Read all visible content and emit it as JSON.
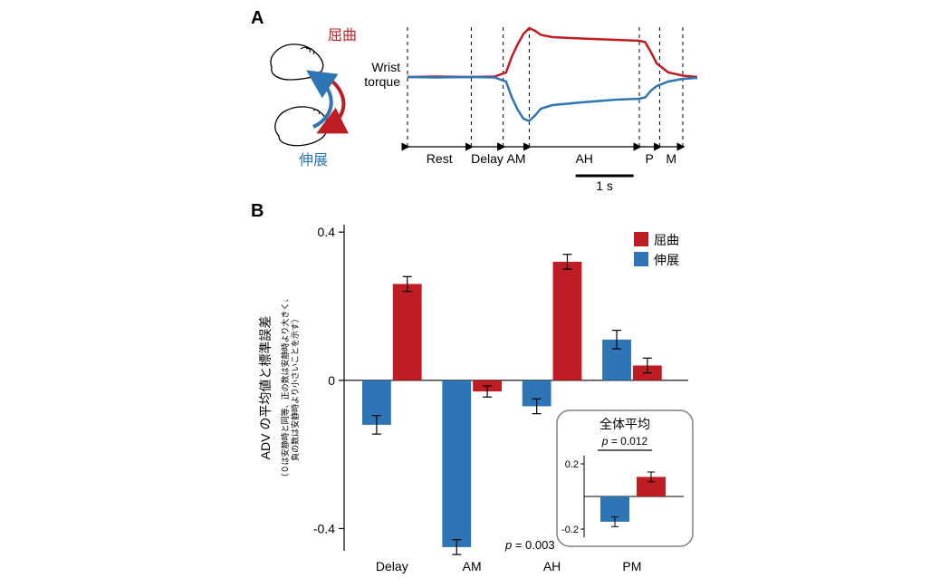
{
  "panelA": {
    "letter": "A",
    "labels": {
      "flexion": "屈曲",
      "extension": "伸展",
      "wrist_torque": "Wrist\ntorque",
      "phases": [
        "Rest",
        "Delay",
        "AM",
        "AH",
        "PM"
      ],
      "scale_bar": "1 s"
    },
    "colors": {
      "flexion": "#BE1D24",
      "extension": "#2E75B6",
      "axis": "#000000",
      "bg": "#ffffff"
    },
    "torque_red": [
      [
        0,
        0.0
      ],
      [
        0.1,
        0.01
      ],
      [
        0.22,
        0.0
      ],
      [
        0.3,
        0.01
      ],
      [
        0.34,
        0.1
      ],
      [
        0.36,
        0.45
      ],
      [
        0.38,
        0.72
      ],
      [
        0.4,
        0.95
      ],
      [
        0.42,
        1.08
      ],
      [
        0.44,
        1.02
      ],
      [
        0.46,
        0.93
      ],
      [
        0.5,
        0.88
      ],
      [
        0.6,
        0.85
      ],
      [
        0.72,
        0.82
      ],
      [
        0.8,
        0.8
      ],
      [
        0.82,
        0.77
      ],
      [
        0.84,
        0.55
      ],
      [
        0.86,
        0.3
      ],
      [
        0.9,
        0.1
      ],
      [
        0.95,
        0.03
      ],
      [
        1.0,
        0.0
      ]
    ],
    "torque_blue": [
      [
        0,
        0.0
      ],
      [
        0.1,
        -0.01
      ],
      [
        0.22,
        0.0
      ],
      [
        0.3,
        -0.01
      ],
      [
        0.34,
        -0.1
      ],
      [
        0.36,
        -0.45
      ],
      [
        0.38,
        -0.72
      ],
      [
        0.4,
        -0.92
      ],
      [
        0.42,
        -0.97
      ],
      [
        0.44,
        -0.85
      ],
      [
        0.46,
        -0.7
      ],
      [
        0.5,
        -0.62
      ],
      [
        0.6,
        -0.56
      ],
      [
        0.72,
        -0.5
      ],
      [
        0.8,
        -0.48
      ],
      [
        0.82,
        -0.45
      ],
      [
        0.84,
        -0.3
      ],
      [
        0.86,
        -0.2
      ],
      [
        0.9,
        -0.1
      ],
      [
        0.95,
        -0.04
      ],
      [
        1.0,
        -0.02
      ]
    ],
    "phase_boundaries": [
      0.0,
      0.22,
      0.33,
      0.42,
      0.8,
      0.87,
      0.95
    ],
    "line_width": 2.5,
    "dash": "4,4"
  },
  "panelB": {
    "letter": "B",
    "ylabel_main": "ADV の平均値と標準誤差",
    "ylabel_sub": "（０は安静時と同等、正の数は安静時より大きく、\n負の数は安静時より小さいことを示す）",
    "categories": [
      "Delay",
      "AM",
      "AH",
      "PM"
    ],
    "legend": {
      "flexion": "屈曲",
      "extension": "伸展"
    },
    "colors": {
      "flexion": "#BE1D24",
      "extension": "#2E75B6",
      "axis": "#000000",
      "errbar": "#000000",
      "bg": "#ffffff",
      "inset_border": "#808080"
    },
    "ylim": [
      -0.46,
      0.42
    ],
    "yticks": [
      -0.4,
      0,
      0.4
    ],
    "bar_width": 0.36,
    "bar_gap": 0.02,
    "group_gap": 0.25,
    "series": {
      "extension": {
        "values": [
          -0.12,
          -0.45,
          -0.07,
          0.11
        ],
        "errors": [
          0.025,
          0.02,
          0.02,
          0.025
        ]
      },
      "flexion": {
        "values": [
          0.26,
          -0.03,
          0.32,
          0.04
        ],
        "errors": [
          0.02,
          0.015,
          0.02,
          0.02
        ]
      }
    },
    "annotation_am": {
      "text": "p = 0.003",
      "p_italic": true
    },
    "inset": {
      "title": "全体平均",
      "p_text": "p = 0.012",
      "ylim": [
        -0.25,
        0.25
      ],
      "yticks": [
        -0.2,
        0.2
      ],
      "extension": {
        "value": -0.155,
        "error": 0.03
      },
      "flexion": {
        "value": 0.12,
        "error": 0.03
      }
    },
    "fontsize": {
      "axis_num": 14,
      "cat": 14,
      "ylabel_main": 14,
      "ylabel_sub": 9,
      "legend": 14,
      "annot": 13,
      "inset_title": 14,
      "inset_p": 12
    },
    "stroke_width": {
      "axis": 1.2,
      "bar_border": 0,
      "errbar": 1.2
    }
  }
}
